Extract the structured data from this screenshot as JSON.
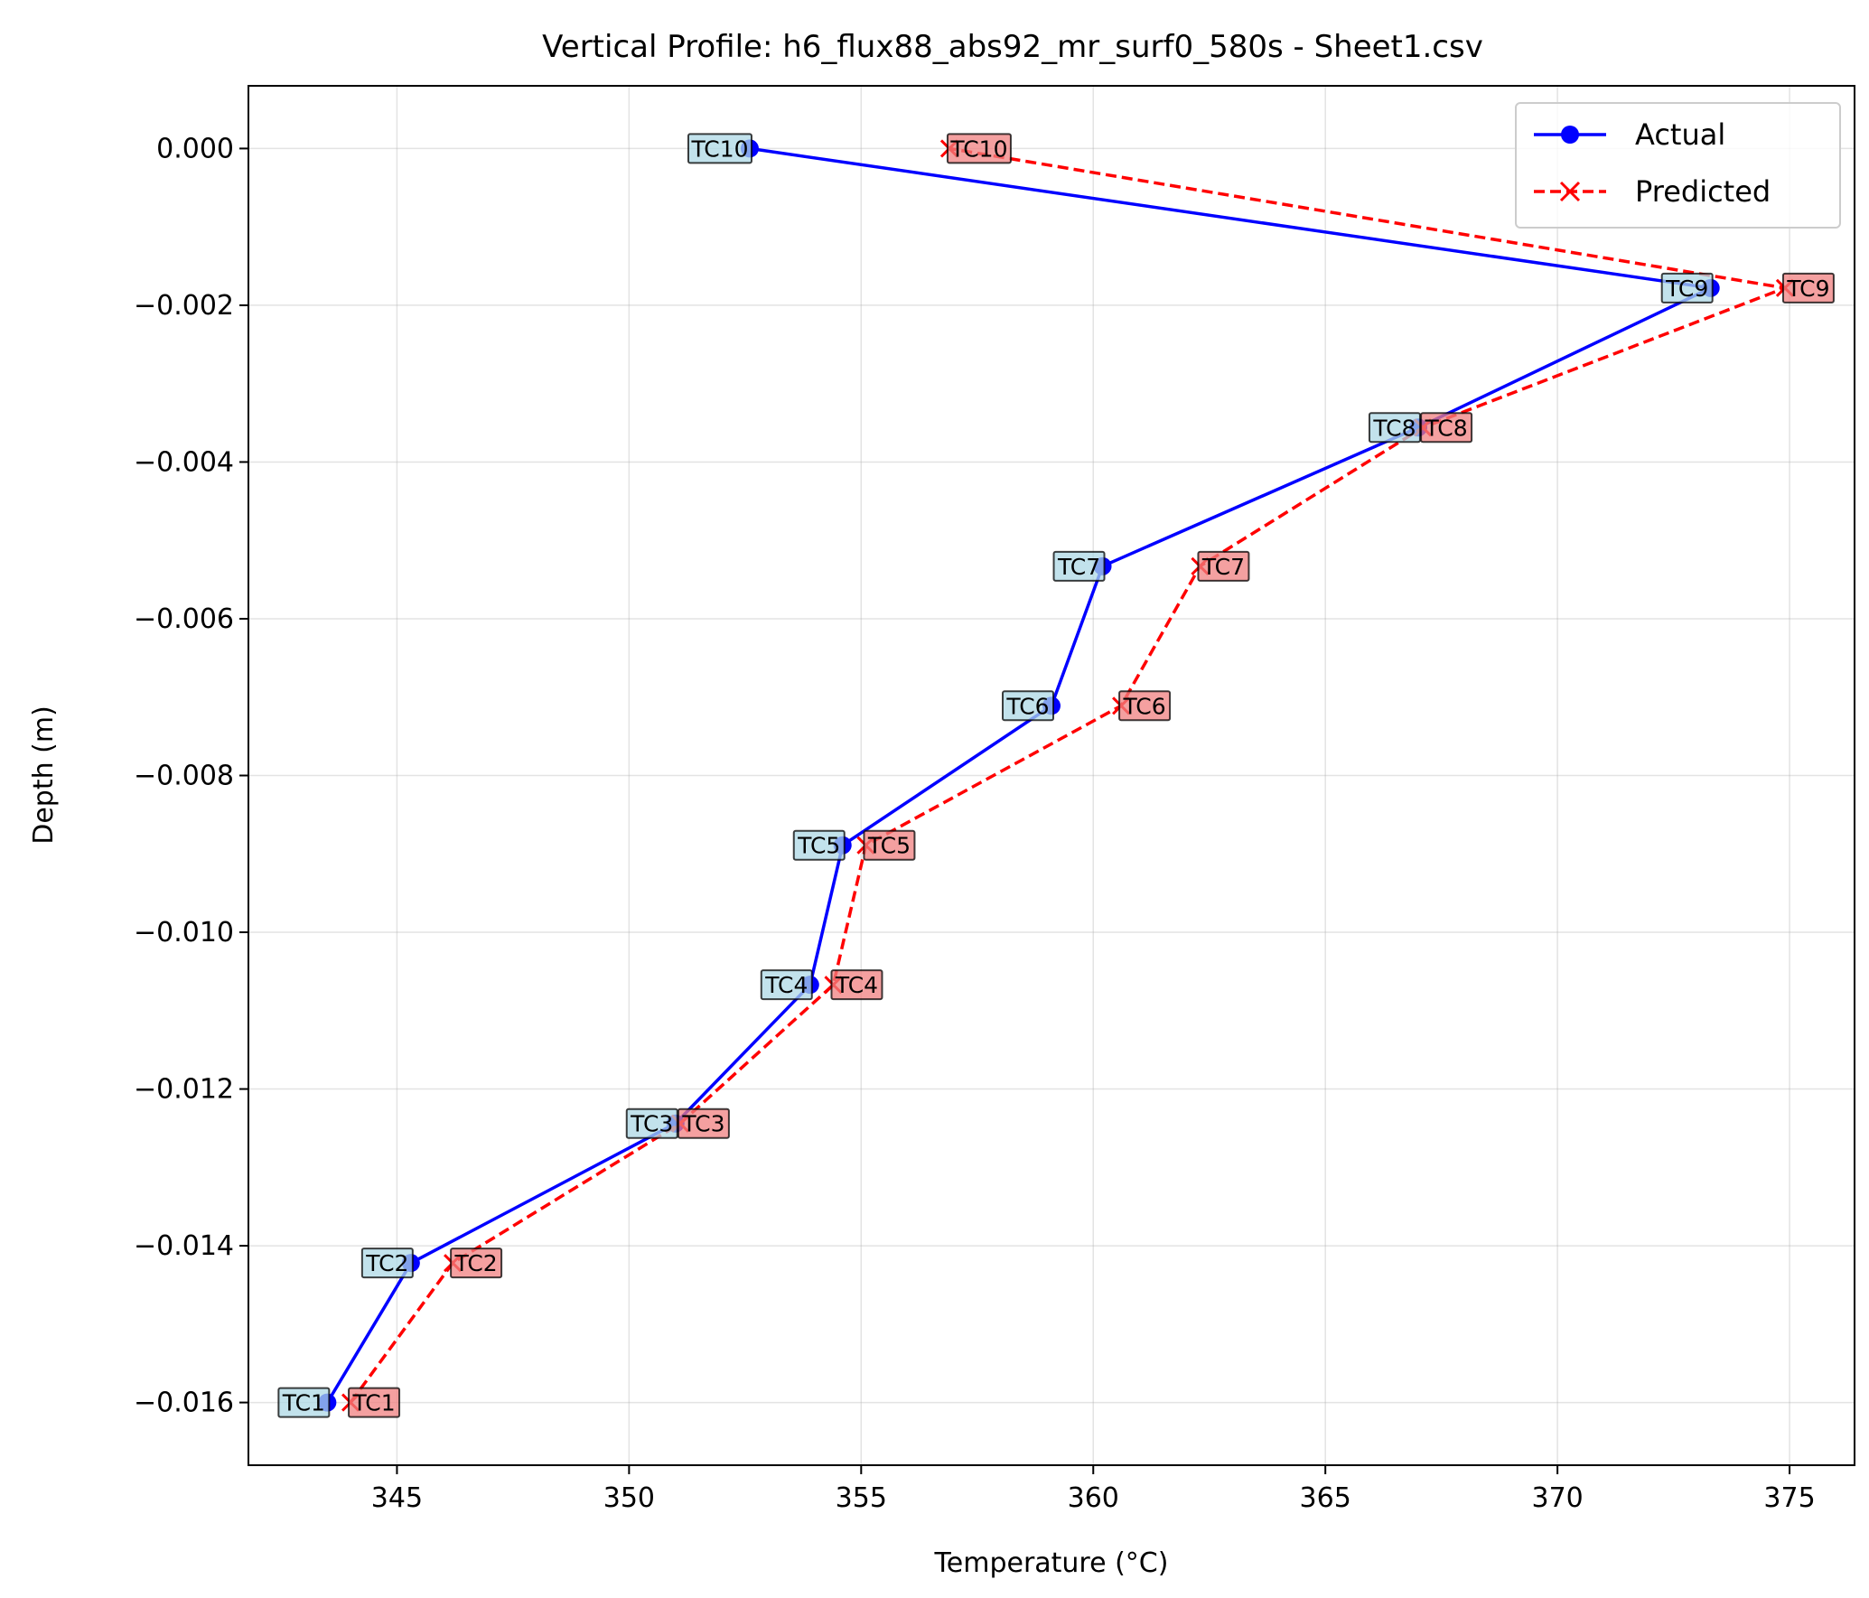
{
  "chart_data": {
    "type": "line",
    "title": "Vertical Profile: h6_flux88_abs92_mr_surf0_580s - Sheet1.csv",
    "xlabel": "Temperature (°C)",
    "ylabel": "Depth (m)",
    "xlim": [
      341.8,
      376.4
    ],
    "ylim": [
      -0.0168,
      0.0008
    ],
    "xticks": [
      345,
      350,
      355,
      360,
      365,
      370,
      375
    ],
    "yticks": [
      0.0,
      -0.002,
      -0.004,
      -0.006,
      -0.008,
      -0.01,
      -0.012,
      -0.014,
      -0.016
    ],
    "xtick_labels": [
      "345",
      "350",
      "355",
      "360",
      "365",
      "370",
      "375"
    ],
    "ytick_labels": [
      "0.000",
      "−0.002",
      "−0.004",
      "−0.006",
      "−0.008",
      "−0.010",
      "−0.012",
      "−0.014",
      "−0.016"
    ],
    "grid": true,
    "legend_position": "upper-right",
    "series": [
      {
        "name": "Actual",
        "color": "#0000ff",
        "line_style": "solid",
        "marker": "circle",
        "label_bg": "#add8e6",
        "points": [
          {
            "label": "TC1",
            "temp": 343.5,
            "depth": -0.016
          },
          {
            "label": "TC2",
            "temp": 345.3,
            "depth": -0.01422
          },
          {
            "label": "TC3",
            "temp": 351.0,
            "depth": -0.01244
          },
          {
            "label": "TC4",
            "temp": 353.9,
            "depth": -0.01067
          },
          {
            "label": "TC5",
            "temp": 354.6,
            "depth": -0.00889
          },
          {
            "label": "TC6",
            "temp": 359.1,
            "depth": -0.00711
          },
          {
            "label": "TC7",
            "temp": 360.2,
            "depth": -0.00533
          },
          {
            "label": "TC8",
            "temp": 367.0,
            "depth": -0.00356
          },
          {
            "label": "TC9",
            "temp": 373.3,
            "depth": -0.00178
          },
          {
            "label": "TC10",
            "temp": 352.6,
            "depth": 0.0
          }
        ]
      },
      {
        "name": "Predicted",
        "color": "#ff0000",
        "line_style": "dashed",
        "marker": "x",
        "label_bg": "#f08080",
        "points": [
          {
            "label": "TC1",
            "temp": 344.0,
            "depth": -0.016
          },
          {
            "label": "TC2",
            "temp": 346.2,
            "depth": -0.01422
          },
          {
            "label": "TC3",
            "temp": 351.1,
            "depth": -0.01244
          },
          {
            "label": "TC4",
            "temp": 354.4,
            "depth": -0.01067
          },
          {
            "label": "TC5",
            "temp": 355.1,
            "depth": -0.00889
          },
          {
            "label": "TC6",
            "temp": 360.6,
            "depth": -0.00711
          },
          {
            "label": "TC7",
            "temp": 362.3,
            "depth": -0.00533
          },
          {
            "label": "TC8",
            "temp": 367.1,
            "depth": -0.00356
          },
          {
            "label": "TC9",
            "temp": 374.9,
            "depth": -0.00178
          },
          {
            "label": "TC10",
            "temp": 356.9,
            "depth": 0.0
          }
        ]
      }
    ]
  }
}
